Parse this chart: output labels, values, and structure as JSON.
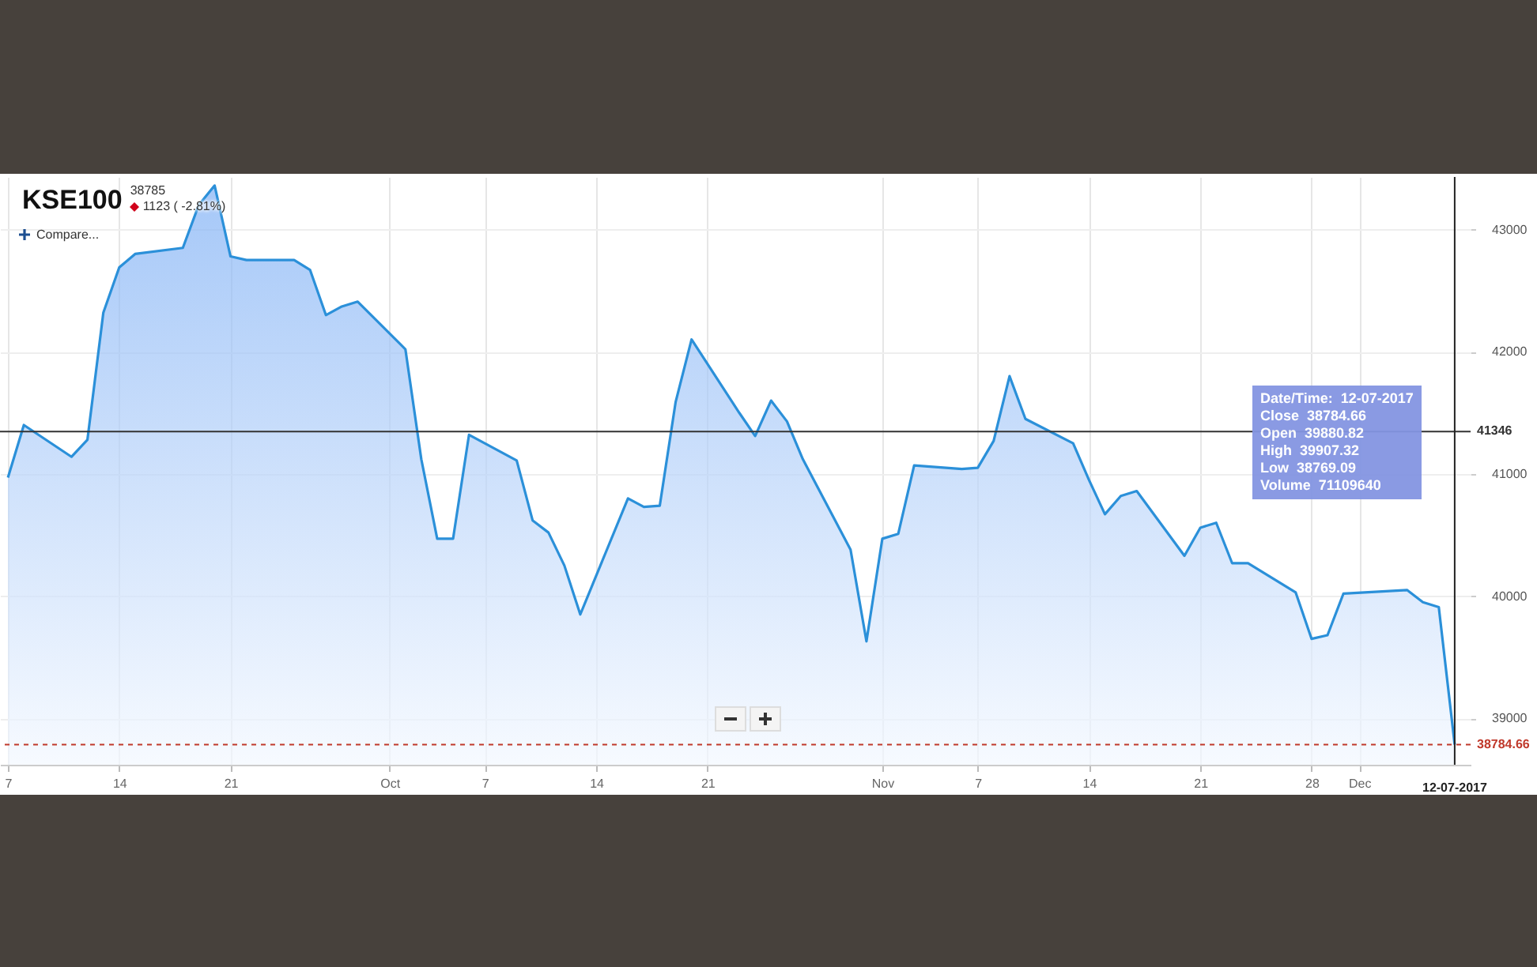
{
  "chart_data": {
    "type": "area",
    "title": "KSE100",
    "subtitle": "38785",
    "annotations": [
      "1123 ( -2.81%)",
      "Date/Time:  12-07-2017",
      "Close  38784.66",
      "Open  39880.82",
      "High  39907.32",
      "Low  38769.09",
      "Volume  71109640",
      "Compare..."
    ],
    "x": [
      "2017-09-07",
      "2017-09-08",
      "2017-09-11",
      "2017-09-12",
      "2017-09-13",
      "2017-09-14",
      "2017-09-15",
      "2017-09-18",
      "2017-09-19",
      "2017-09-20",
      "2017-09-21",
      "2017-09-22",
      "2017-09-25",
      "2017-09-26",
      "2017-09-27",
      "2017-09-28",
      "2017-09-29",
      "2017-10-02",
      "2017-10-03",
      "2017-10-04",
      "2017-10-05",
      "2017-10-06",
      "2017-10-09",
      "2017-10-10",
      "2017-10-11",
      "2017-10-12",
      "2017-10-13",
      "2017-10-16",
      "2017-10-17",
      "2017-10-18",
      "2017-10-19",
      "2017-10-20",
      "2017-10-23",
      "2017-10-24",
      "2017-10-25",
      "2017-10-26",
      "2017-10-27",
      "2017-10-30",
      "2017-10-31",
      "2017-11-01",
      "2017-11-02",
      "2017-11-03",
      "2017-11-06",
      "2017-11-07",
      "2017-11-08",
      "2017-11-09",
      "2017-11-10",
      "2017-11-13",
      "2017-11-14",
      "2017-11-15",
      "2017-11-16",
      "2017-11-17",
      "2017-11-20",
      "2017-11-21",
      "2017-11-22",
      "2017-11-23",
      "2017-11-24",
      "2017-11-27",
      "2017-11-28",
      "2017-11-29",
      "2017-11-30",
      "2017-12-04",
      "2017-12-05",
      "2017-12-06",
      "2017-12-07"
    ],
    "series": [
      {
        "color": "#2b90d9",
        "values": [
          40970,
          41400,
          41140,
          41280,
          42320,
          42690,
          42800,
          42850,
          43200,
          43360,
          42780,
          42750,
          42750,
          42670,
          42300,
          42370,
          42410,
          42020,
          41120,
          40470,
          40470,
          41320,
          41110,
          40620,
          40520,
          40250,
          39850,
          40800,
          40730,
          40740,
          41590,
          42100,
          41500,
          41310,
          41600,
          41430,
          41120,
          40380,
          39630,
          40470,
          40510,
          41070,
          41040,
          41050,
          41270,
          41800,
          41450,
          41250,
          40950,
          40670,
          40820,
          40860,
          40330,
          40560,
          40600,
          40270,
          40270,
          40030,
          39650,
          39680,
          40020,
          40050,
          39950,
          39910,
          38785
        ]
      }
    ],
    "xlim": [
      "2017-09-06T12:00",
      "2017-12-08"
    ],
    "ylim": [
      38620,
      43430
    ],
    "xticks": [
      {
        "value": "2017-09-07",
        "label": "7"
      },
      {
        "value": "2017-09-14",
        "label": "14"
      },
      {
        "value": "2017-09-21",
        "label": "21"
      },
      {
        "value": "2017-10-01",
        "label": "Oct"
      },
      {
        "value": "2017-10-07",
        "label": "7"
      },
      {
        "value": "2017-10-14",
        "label": "14"
      },
      {
        "value": "2017-10-21",
        "label": "21"
      },
      {
        "value": "2017-11-01",
        "label": "Nov"
      },
      {
        "value": "2017-11-07",
        "label": "7"
      },
      {
        "value": "2017-11-14",
        "label": "14"
      },
      {
        "value": "2017-11-21",
        "label": "21"
      },
      {
        "value": "2017-11-28",
        "label": "28"
      },
      {
        "value": "2017-12-01",
        "label": "Dec"
      }
    ],
    "yticks": [
      39000,
      40000,
      41000,
      42000,
      43000
    ],
    "grid": true,
    "ref_lines": [
      {
        "axis": "y",
        "value": 41346,
        "label": "41346",
        "color": "#333333"
      },
      {
        "axis": "y",
        "value": 38784.66,
        "label": "38784.66",
        "color": "#c0392b",
        "line_style": "dashed"
      },
      {
        "axis": "x",
        "value": "2017-12-07",
        "label": "12-07-2017",
        "color": "#222222"
      }
    ]
  }
}
